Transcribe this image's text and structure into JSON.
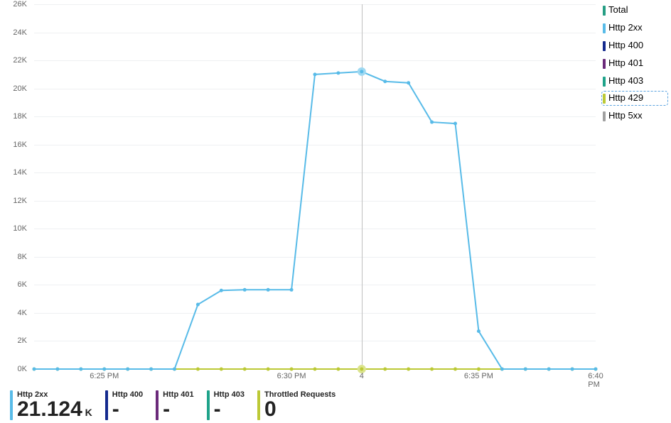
{
  "chart": {
    "type": "line",
    "background_color": "#ffffff",
    "grid_color": "#eef0f2",
    "axis_label_color": "#666666",
    "axis_label_fontsize": 11,
    "y": {
      "min": 0,
      "max": 26000,
      "tick_step": 2000,
      "ticks": [
        "0K",
        "2K",
        "4K",
        "6K",
        "8K",
        "10K",
        "12K",
        "14K",
        "16K",
        "18K",
        "20K",
        "22K",
        "24K",
        "26K"
      ]
    },
    "x": {
      "count": 25,
      "ticks": [
        {
          "index": 3,
          "label": "6:25 PM"
        },
        {
          "index": 11,
          "label": "6:30 PM"
        },
        {
          "index": 14,
          "label": "4"
        },
        {
          "index": 19,
          "label": "6:35 PM"
        },
        {
          "index": 24,
          "label": "6:40 PM"
        }
      ],
      "crosshair_index": 14,
      "crosshair_color": "#bfbfbf"
    },
    "series": {
      "http2xx": {
        "label": "Http 2xx",
        "color": "#58bbe8",
        "line_width": 2,
        "marker_radius": 2.5,
        "values": [
          0,
          0,
          0,
          0,
          0,
          0,
          0,
          4600,
          5600,
          5650,
          5650,
          5650,
          21000,
          21100,
          21200,
          20500,
          20400,
          17600,
          17500,
          2700,
          0,
          0,
          0,
          0,
          0
        ],
        "highlight_index": 14,
        "highlight_radius": 6,
        "highlight_fill": "#9fd9f2"
      },
      "http429": {
        "label": "Http 429",
        "color": "#bcc936",
        "line_width": 2,
        "marker_radius": 2.5,
        "values": [
          0,
          0,
          0,
          0,
          0,
          0,
          0,
          0,
          0,
          0,
          0,
          0,
          0,
          0,
          0,
          0,
          0,
          0,
          0,
          0,
          0,
          0,
          0,
          0,
          0
        ],
        "highlight_index": 14,
        "highlight_radius": 6,
        "highlight_fill": "#dbe48d"
      }
    }
  },
  "legend": {
    "items": [
      {
        "label": "Total",
        "color": "#269e84",
        "selected": false
      },
      {
        "label": "Http 2xx",
        "color": "#58bbe8",
        "selected": false
      },
      {
        "label": "Http 400",
        "color": "#142a8e",
        "selected": false
      },
      {
        "label": "Http 401",
        "color": "#6b2a7a",
        "selected": false
      },
      {
        "label": "Http 403",
        "color": "#1fa38a",
        "selected": false
      },
      {
        "label": "Http 429",
        "color": "#bcc936",
        "selected": true
      },
      {
        "label": "Http 5xx",
        "color": "#a0a0a0",
        "selected": false
      }
    ],
    "label_fontsize": 13
  },
  "stats": [
    {
      "label": "Http 2xx",
      "value": "21.124",
      "unit": " K",
      "color": "#58bbe8"
    },
    {
      "label": "Http 400",
      "value": "-",
      "unit": "",
      "color": "#142a8e"
    },
    {
      "label": "Http 401",
      "value": "-",
      "unit": "",
      "color": "#6b2a7a"
    },
    {
      "label": "Http 403",
      "value": "-",
      "unit": "",
      "color": "#1fa38a"
    },
    {
      "label": "Throttled Requests",
      "value": "0",
      "unit": "",
      "color": "#bcc936"
    }
  ]
}
